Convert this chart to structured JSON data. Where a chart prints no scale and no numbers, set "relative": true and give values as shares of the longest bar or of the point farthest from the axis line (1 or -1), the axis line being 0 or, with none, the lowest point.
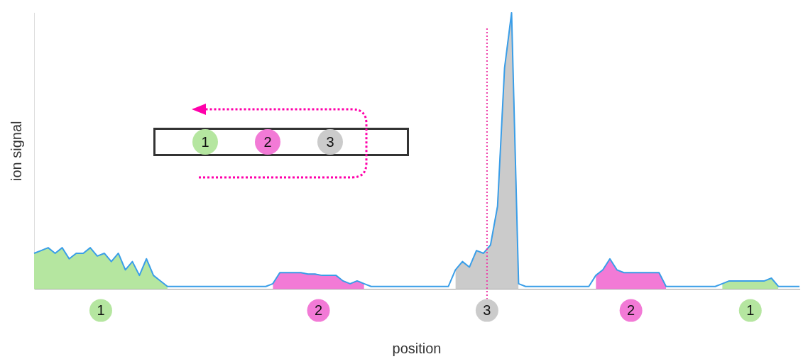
{
  "chart_data": {
    "type": "line",
    "relative": true,
    "xlabel": "position",
    "ylabel": "ion signal",
    "legend": false,
    "marker": "none",
    "line_style": "solid",
    "categories": [
      null,
      null,
      null,
      null,
      null,
      null,
      null,
      null,
      null,
      null,
      null,
      null,
      null,
      null,
      null,
      null,
      null,
      null,
      null,
      null,
      null,
      null,
      null,
      null,
      null,
      null,
      null,
      null,
      null,
      null,
      null,
      null,
      null,
      null,
      null,
      null,
      null,
      null,
      null,
      null,
      null,
      null,
      null,
      null,
      null,
      null,
      null,
      null,
      null,
      null,
      null,
      null,
      null,
      null,
      null,
      null,
      null,
      null,
      null,
      null,
      null,
      null,
      null,
      null,
      null,
      null,
      null,
      null,
      null,
      null,
      null,
      null,
      null,
      null,
      null,
      null,
      null,
      null,
      null,
      null,
      null,
      null,
      null,
      null,
      null,
      null,
      null,
      null,
      null,
      null,
      null,
      null,
      null,
      null,
      null,
      null,
      null,
      null,
      null,
      null,
      null,
      null,
      null,
      null,
      null,
      null,
      null,
      null,
      null,
      null
    ],
    "series": [
      {
        "type": "area",
        "color": "#b5e6a0",
        "values": [
          0.13,
          0.14,
          0.15,
          0.13,
          0.15,
          0.11,
          0.13,
          0.13,
          0.15,
          0.12,
          0.13,
          0.1,
          0.13,
          0.07,
          0.1,
          0.05,
          0.11,
          0.05,
          0.03,
          0.01,
          null,
          null,
          null,
          null,
          null,
          null,
          null,
          null,
          null,
          null,
          null,
          null,
          null,
          null,
          null,
          null,
          null,
          null,
          null,
          null,
          null,
          null,
          null,
          null,
          null,
          null,
          null,
          null,
          null,
          null,
          null,
          null,
          null,
          null,
          null,
          null,
          null,
          null,
          null,
          null,
          null,
          null,
          null,
          null,
          null,
          null,
          null,
          null,
          null,
          null,
          null,
          null,
          null,
          null,
          null,
          null,
          null,
          null,
          null,
          null,
          null,
          null,
          null,
          null,
          null,
          null,
          null,
          null,
          null,
          null,
          null,
          null,
          null,
          null,
          null,
          null,
          null,
          null,
          null,
          null,
          null,
          null,
          null,
          null,
          null,
          null,
          null,
          null,
          null,
          null
        ]
      },
      {
        "type": "area",
        "color": "#f27ad6",
        "values": [
          null,
          null,
          null,
          null,
          null,
          null,
          null,
          null,
          null,
          null,
          null,
          null,
          null,
          null,
          null,
          null,
          null,
          null,
          null,
          null,
          null,
          null,
          null,
          null,
          null,
          null,
          null,
          null,
          null,
          null,
          null,
          null,
          null,
          null,
          0.02,
          0.06,
          0.06,
          0.06,
          0.06,
          0.055,
          0.055,
          0.05,
          0.05,
          0.05,
          0.03,
          0.02,
          0.03,
          0.02,
          null,
          null,
          null,
          null,
          null,
          null,
          null,
          null,
          null,
          null,
          null,
          null,
          null,
          null,
          null,
          null,
          null,
          null,
          null,
          null,
          null,
          null,
          null,
          null,
          null,
          null,
          null,
          null,
          null,
          null,
          null,
          null,
          null,
          null,
          null,
          null,
          null,
          null,
          null,
          null,
          null,
          null,
          null,
          null,
          null,
          null,
          null,
          null,
          null,
          null,
          null,
          null,
          null,
          null,
          null,
          null,
          null,
          null,
          null,
          null,
          null,
          null
        ]
      },
      {
        "type": "area",
        "color": "#cbcbcb",
        "values": [
          null,
          null,
          null,
          null,
          null,
          null,
          null,
          null,
          null,
          null,
          null,
          null,
          null,
          null,
          null,
          null,
          null,
          null,
          null,
          null,
          null,
          null,
          null,
          null,
          null,
          null,
          null,
          null,
          null,
          null,
          null,
          null,
          null,
          null,
          null,
          null,
          null,
          null,
          null,
          null,
          null,
          null,
          null,
          null,
          null,
          null,
          null,
          null,
          null,
          null,
          null,
          null,
          null,
          null,
          null,
          null,
          null,
          null,
          null,
          null,
          0.07,
          0.1,
          0.08,
          0.14,
          0.13,
          0.16,
          0.3,
          0.8,
          1,
          0.02,
          null,
          null,
          null,
          null,
          null,
          null,
          null,
          null,
          null,
          null,
          null,
          null,
          null,
          null,
          null,
          null,
          null,
          null,
          null,
          null,
          null,
          null,
          null,
          null,
          null,
          null,
          null,
          null,
          null,
          null,
          null,
          null,
          null,
          null,
          null,
          null,
          null,
          null,
          null,
          null
        ]
      },
      {
        "type": "area",
        "color": "#f27ad6",
        "values": [
          null,
          null,
          null,
          null,
          null,
          null,
          null,
          null,
          null,
          null,
          null,
          null,
          null,
          null,
          null,
          null,
          null,
          null,
          null,
          null,
          null,
          null,
          null,
          null,
          null,
          null,
          null,
          null,
          null,
          null,
          null,
          null,
          null,
          null,
          null,
          null,
          null,
          null,
          null,
          null,
          null,
          null,
          null,
          null,
          null,
          null,
          null,
          null,
          null,
          null,
          null,
          null,
          null,
          null,
          null,
          null,
          null,
          null,
          null,
          null,
          null,
          null,
          null,
          null,
          null,
          null,
          null,
          null,
          null,
          null,
          null,
          null,
          null,
          null,
          null,
          null,
          null,
          null,
          null,
          null,
          0.05,
          0.07,
          0.11,
          0.07,
          0.06,
          0.06,
          0.06,
          0.06,
          0.06,
          0.06,
          0.01,
          null,
          null,
          null,
          null,
          null,
          null,
          null,
          null,
          null,
          null,
          null,
          null,
          null,
          null,
          null,
          null,
          null,
          null,
          null
        ]
      },
      {
        "type": "area",
        "color": "#b5e6a0",
        "values": [
          null,
          null,
          null,
          null,
          null,
          null,
          null,
          null,
          null,
          null,
          null,
          null,
          null,
          null,
          null,
          null,
          null,
          null,
          null,
          null,
          null,
          null,
          null,
          null,
          null,
          null,
          null,
          null,
          null,
          null,
          null,
          null,
          null,
          null,
          null,
          null,
          null,
          null,
          null,
          null,
          null,
          null,
          null,
          null,
          null,
          null,
          null,
          null,
          null,
          null,
          null,
          null,
          null,
          null,
          null,
          null,
          null,
          null,
          null,
          null,
          null,
          null,
          null,
          null,
          null,
          null,
          null,
          null,
          null,
          null,
          null,
          null,
          null,
          null,
          null,
          null,
          null,
          null,
          null,
          null,
          null,
          null,
          null,
          null,
          null,
          null,
          null,
          null,
          null,
          null,
          null,
          null,
          null,
          null,
          null,
          null,
          null,
          null,
          0.02,
          0.03,
          0.03,
          0.03,
          0.03,
          0.03,
          0.03,
          0.04,
          0.01,
          null,
          null,
          null
        ]
      },
      {
        "color": "#3a9ee8",
        "values": [
          0.13,
          0.14,
          0.15,
          0.13,
          0.15,
          0.11,
          0.13,
          0.13,
          0.15,
          0.12,
          0.13,
          0.1,
          0.13,
          0.07,
          0.1,
          0.05,
          0.11,
          0.05,
          0.03,
          0.01,
          0.01,
          0.01,
          0.01,
          0.01,
          0.01,
          0.01,
          0.01,
          0.01,
          0.01,
          0.01,
          0.01,
          0.01,
          0.01,
          0.01,
          0.02,
          0.06,
          0.06,
          0.06,
          0.06,
          0.055,
          0.055,
          0.05,
          0.05,
          0.05,
          0.03,
          0.02,
          0.03,
          0.02,
          0.01,
          0.01,
          0.01,
          0.01,
          0.01,
          0.01,
          0.01,
          0.01,
          0.01,
          0.01,
          0.01,
          0.01,
          0.07,
          0.1,
          0.08,
          0.14,
          0.13,
          0.16,
          0.3,
          0.8,
          1,
          0.02,
          0.01,
          0.01,
          0.01,
          0.01,
          0.01,
          0.01,
          0.01,
          0.01,
          0.01,
          0.01,
          0.05,
          0.07,
          0.11,
          0.07,
          0.06,
          0.06,
          0.06,
          0.06,
          0.06,
          0.06,
          0.01,
          0.01,
          0.01,
          0.01,
          0.01,
          0.01,
          0.01,
          0.01,
          0.02,
          0.03,
          0.03,
          0.03,
          0.03,
          0.03,
          0.03,
          0.04,
          0.01,
          0.01,
          0.01,
          0.01
        ]
      }
    ],
    "annotations": [
      "1",
      "2",
      "3",
      "2",
      "1",
      "1",
      "2",
      "3"
    ]
  }
}
